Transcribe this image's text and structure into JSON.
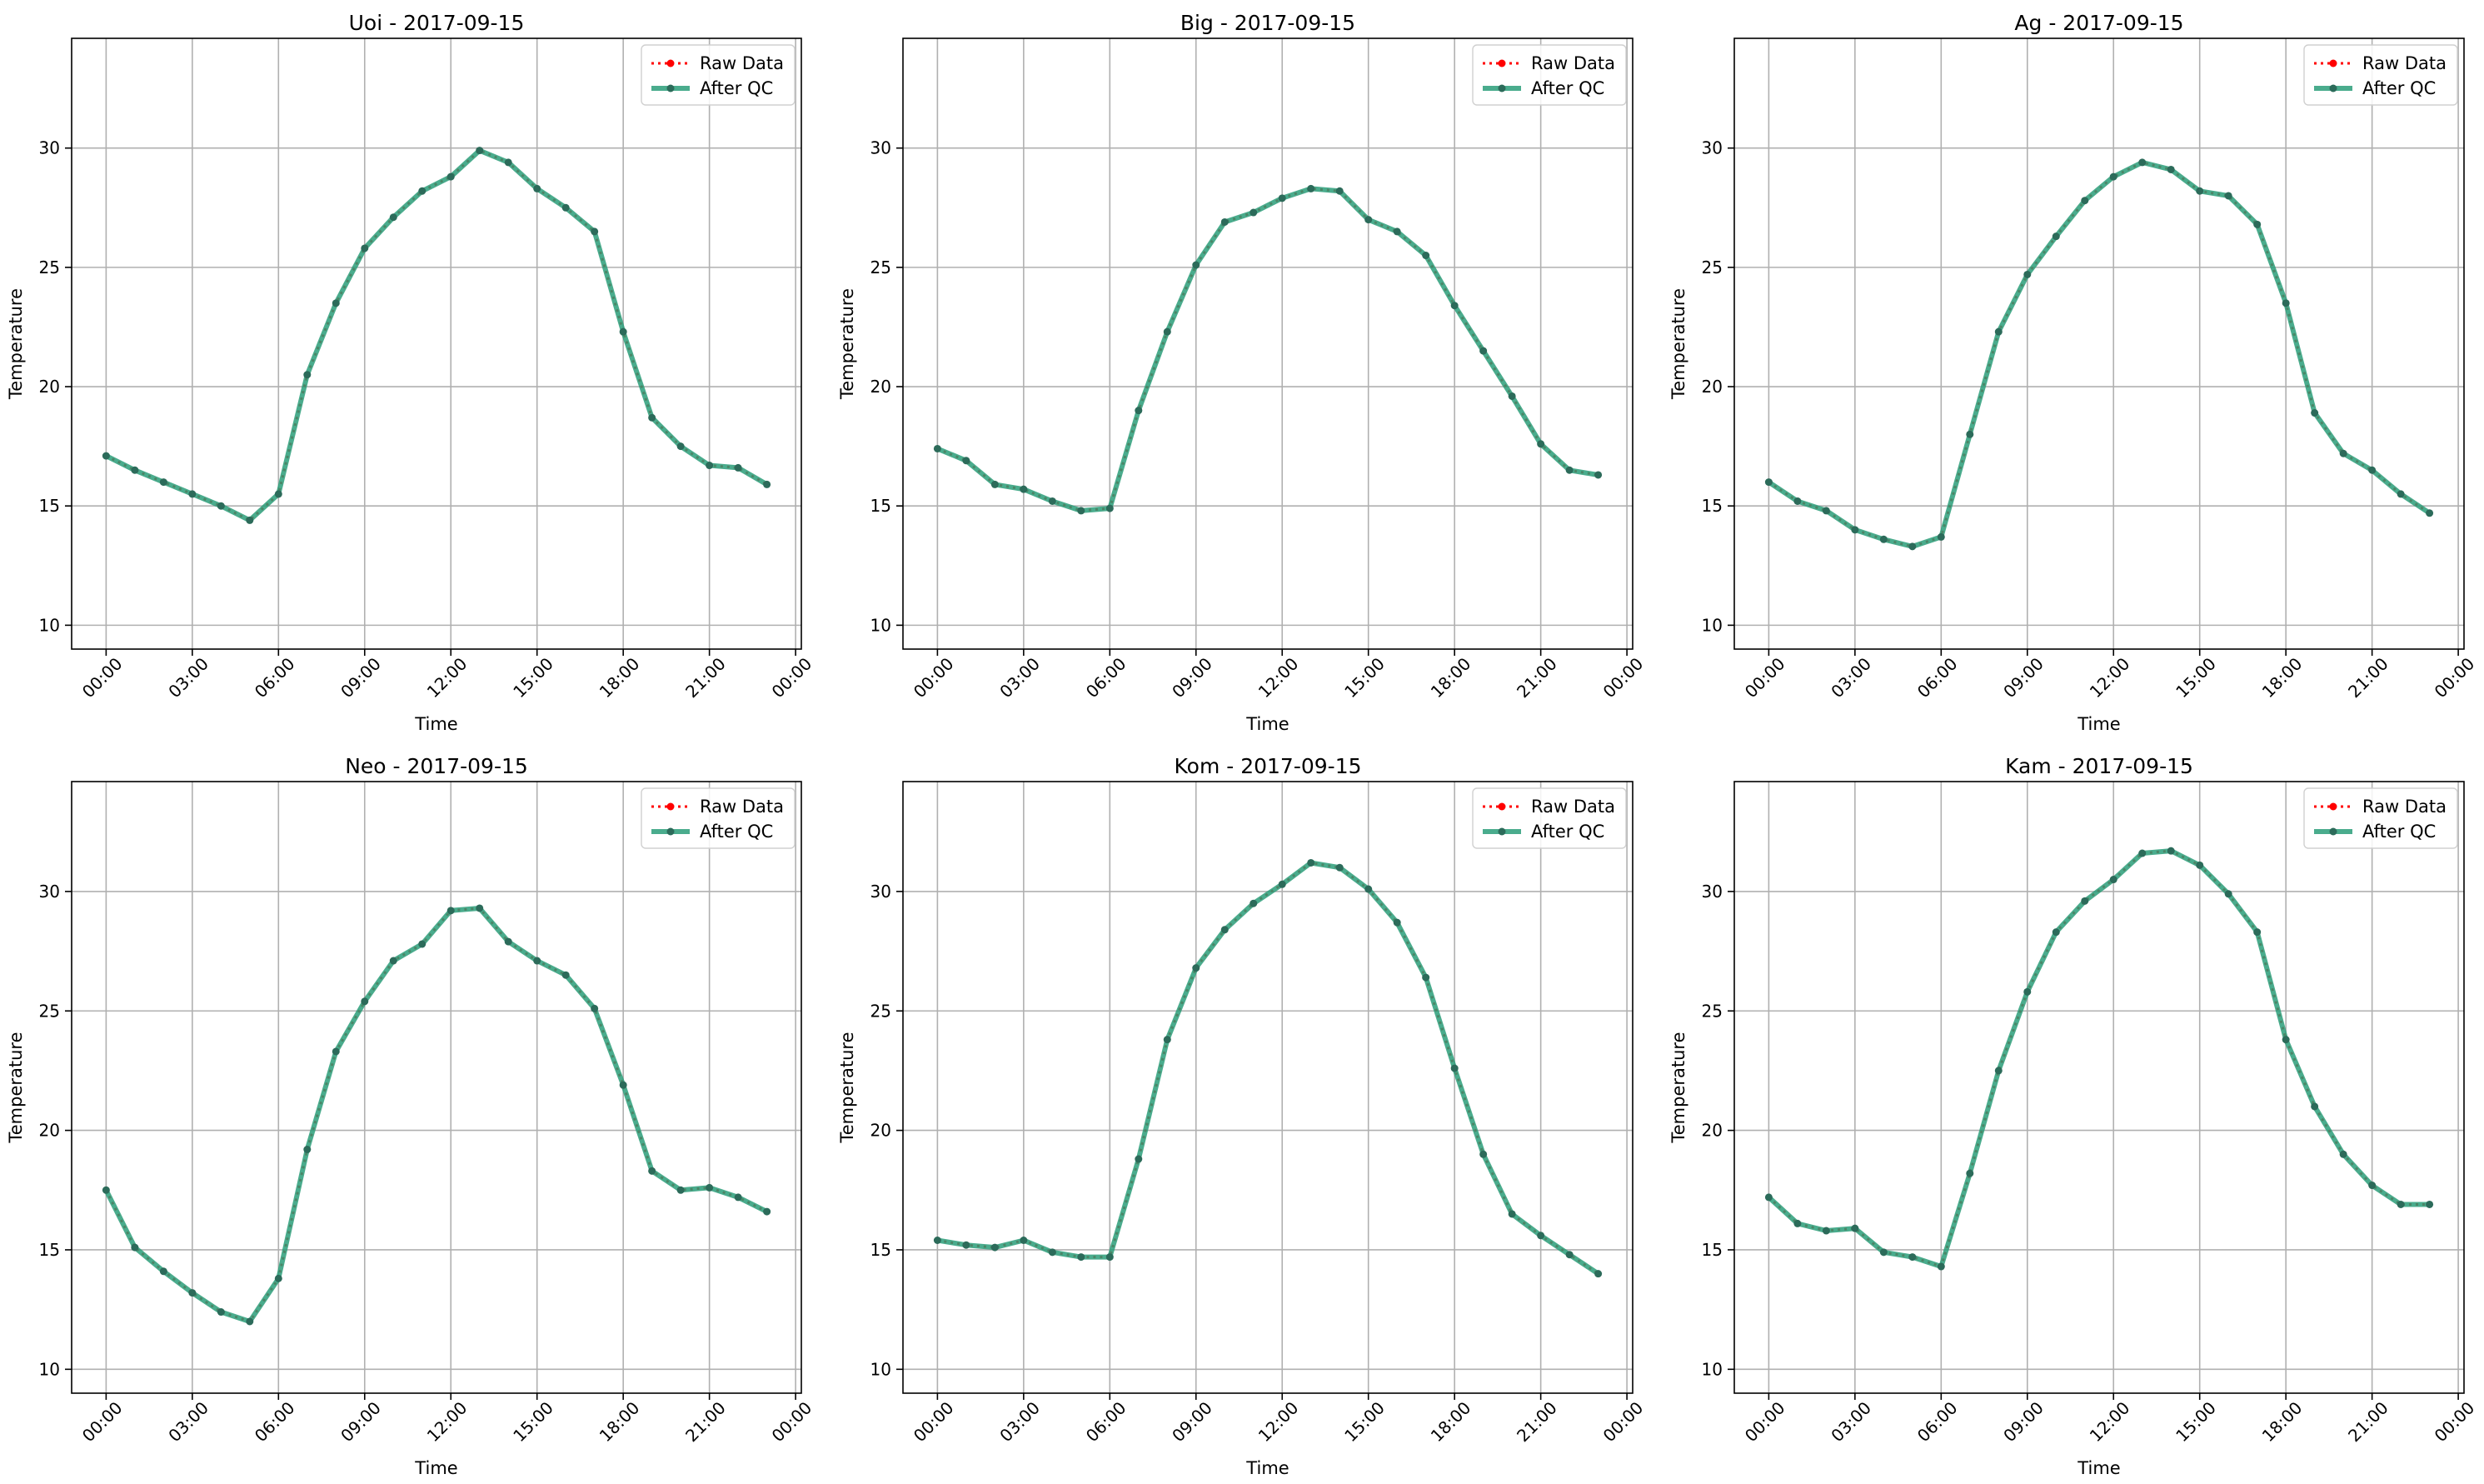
{
  "colors": {
    "raw": "#ff0000",
    "qc": "#2a9d79",
    "grid": "#b0b0b0"
  },
  "chart_data": [
    {
      "type": "line",
      "title": "Uoi - 2017-09-15",
      "xlabel": "Time",
      "ylabel": "Temperature",
      "x_ticks": [
        "00:00",
        "03:00",
        "06:00",
        "09:00",
        "12:00",
        "15:00",
        "18:00",
        "21:00",
        "00:00"
      ],
      "y_ticks": [
        10,
        15,
        20,
        25,
        30
      ],
      "ylim": [
        9,
        34.6
      ],
      "xlim_hours": [
        -1.2,
        24.2
      ],
      "grid": true,
      "legend_position": "upper right",
      "x_hours": [
        0,
        1,
        2,
        3,
        4,
        5,
        6,
        7,
        8,
        9,
        10,
        11,
        12,
        13,
        14,
        15,
        16,
        17,
        18,
        19,
        20,
        21,
        22,
        23
      ],
      "series": [
        {
          "name": "Raw Data",
          "values": [
            17.1,
            16.5,
            16.0,
            15.5,
            15.0,
            14.4,
            15.5,
            20.5,
            23.5,
            25.8,
            27.1,
            28.2,
            28.8,
            29.9,
            29.4,
            28.3,
            27.5,
            26.5,
            22.3,
            18.7,
            17.5,
            16.7,
            16.6,
            15.9
          ]
        },
        {
          "name": "After QC",
          "values": [
            17.1,
            16.5,
            16.0,
            15.5,
            15.0,
            14.4,
            15.5,
            20.5,
            23.5,
            25.8,
            27.1,
            28.2,
            28.8,
            29.9,
            29.4,
            28.3,
            27.5,
            26.5,
            22.3,
            18.7,
            17.5,
            16.7,
            16.6,
            15.9
          ]
        }
      ]
    },
    {
      "type": "line",
      "title": "Big - 2017-09-15",
      "xlabel": "Time",
      "ylabel": "Temperature",
      "x_ticks": [
        "00:00",
        "03:00",
        "06:00",
        "09:00",
        "12:00",
        "15:00",
        "18:00",
        "21:00",
        "00:00"
      ],
      "y_ticks": [
        10,
        15,
        20,
        25,
        30
      ],
      "ylim": [
        9,
        34.6
      ],
      "xlim_hours": [
        -1.2,
        24.2
      ],
      "grid": true,
      "legend_position": "upper right",
      "x_hours": [
        0,
        1,
        2,
        3,
        4,
        5,
        6,
        7,
        8,
        9,
        10,
        11,
        12,
        13,
        14,
        15,
        16,
        17,
        18,
        19,
        20,
        21,
        22,
        23
      ],
      "series": [
        {
          "name": "Raw Data",
          "values": [
            17.4,
            16.9,
            15.9,
            15.7,
            15.2,
            14.8,
            14.9,
            19.0,
            22.3,
            25.1,
            26.9,
            27.3,
            27.9,
            28.3,
            28.2,
            27.0,
            26.5,
            25.5,
            23.4,
            21.5,
            19.6,
            17.6,
            16.5,
            16.3
          ]
        },
        {
          "name": "After QC",
          "values": [
            17.4,
            16.9,
            15.9,
            15.7,
            15.2,
            14.8,
            14.9,
            19.0,
            22.3,
            25.1,
            26.9,
            27.3,
            27.9,
            28.3,
            28.2,
            27.0,
            26.5,
            25.5,
            23.4,
            21.5,
            19.6,
            17.6,
            16.5,
            16.3
          ]
        }
      ]
    },
    {
      "type": "line",
      "title": "Ag - 2017-09-15",
      "xlabel": "Time",
      "ylabel": "Temperature",
      "x_ticks": [
        "00:00",
        "03:00",
        "06:00",
        "09:00",
        "12:00",
        "15:00",
        "18:00",
        "21:00",
        "00:00"
      ],
      "y_ticks": [
        10,
        15,
        20,
        25,
        30
      ],
      "ylim": [
        9,
        34.6
      ],
      "xlim_hours": [
        -1.2,
        24.2
      ],
      "grid": true,
      "legend_position": "upper right",
      "x_hours": [
        0,
        1,
        2,
        3,
        4,
        5,
        6,
        7,
        8,
        9,
        10,
        11,
        12,
        13,
        14,
        15,
        16,
        17,
        18,
        19,
        20,
        21,
        22,
        23
      ],
      "series": [
        {
          "name": "Raw Data",
          "values": [
            16.0,
            15.2,
            14.8,
            14.0,
            13.6,
            13.3,
            13.7,
            18.0,
            22.3,
            24.7,
            26.3,
            27.8,
            28.8,
            29.4,
            29.1,
            28.2,
            28.0,
            26.8,
            23.5,
            18.9,
            17.2,
            16.5,
            15.5,
            14.7
          ]
        },
        {
          "name": "After QC",
          "values": [
            16.0,
            15.2,
            14.8,
            14.0,
            13.6,
            13.3,
            13.7,
            18.0,
            22.3,
            24.7,
            26.3,
            27.8,
            28.8,
            29.4,
            29.1,
            28.2,
            28.0,
            26.8,
            23.5,
            18.9,
            17.2,
            16.5,
            15.5,
            14.7
          ]
        }
      ]
    },
    {
      "type": "line",
      "title": "Neo - 2017-09-15",
      "xlabel": "Time",
      "ylabel": "Temperature",
      "x_ticks": [
        "00:00",
        "03:00",
        "06:00",
        "09:00",
        "12:00",
        "15:00",
        "18:00",
        "21:00",
        "00:00"
      ],
      "y_ticks": [
        10,
        15,
        20,
        25,
        30
      ],
      "ylim": [
        9,
        34.6
      ],
      "xlim_hours": [
        -1.2,
        24.2
      ],
      "grid": true,
      "legend_position": "upper right",
      "x_hours": [
        0,
        1,
        2,
        3,
        4,
        5,
        6,
        7,
        8,
        9,
        10,
        11,
        12,
        13,
        14,
        15,
        16,
        17,
        18,
        19,
        20,
        21,
        22,
        23
      ],
      "series": [
        {
          "name": "Raw Data",
          "values": [
            17.5,
            15.1,
            14.1,
            13.2,
            12.4,
            12.0,
            13.8,
            19.2,
            23.3,
            25.4,
            27.1,
            27.8,
            29.2,
            29.3,
            27.9,
            27.1,
            26.5,
            25.1,
            21.9,
            18.3,
            17.5,
            17.6,
            17.2,
            16.6
          ]
        },
        {
          "name": "After QC",
          "values": [
            17.5,
            15.1,
            14.1,
            13.2,
            12.4,
            12.0,
            13.8,
            19.2,
            23.3,
            25.4,
            27.1,
            27.8,
            29.2,
            29.3,
            27.9,
            27.1,
            26.5,
            25.1,
            21.9,
            18.3,
            17.5,
            17.6,
            17.2,
            16.6
          ]
        }
      ]
    },
    {
      "type": "line",
      "title": "Kom - 2017-09-15",
      "xlabel": "Time",
      "ylabel": "Temperature",
      "x_ticks": [
        "00:00",
        "03:00",
        "06:00",
        "09:00",
        "12:00",
        "15:00",
        "18:00",
        "21:00",
        "00:00"
      ],
      "y_ticks": [
        10,
        15,
        20,
        25,
        30
      ],
      "ylim": [
        9,
        34.6
      ],
      "xlim_hours": [
        -1.2,
        24.2
      ],
      "grid": true,
      "legend_position": "upper right",
      "x_hours": [
        0,
        1,
        2,
        3,
        4,
        5,
        6,
        7,
        8,
        9,
        10,
        11,
        12,
        13,
        14,
        15,
        16,
        17,
        18,
        19,
        20,
        21,
        22,
        23
      ],
      "series": [
        {
          "name": "Raw Data",
          "values": [
            15.4,
            15.2,
            15.1,
            15.4,
            14.9,
            14.7,
            14.7,
            18.8,
            23.8,
            26.8,
            28.4,
            29.5,
            30.3,
            31.2,
            31.0,
            30.1,
            28.7,
            26.4,
            22.6,
            19.0,
            16.5,
            15.6,
            14.8,
            14.0
          ]
        },
        {
          "name": "After QC",
          "values": [
            15.4,
            15.2,
            15.1,
            15.4,
            14.9,
            14.7,
            14.7,
            18.8,
            23.8,
            26.8,
            28.4,
            29.5,
            30.3,
            31.2,
            31.0,
            30.1,
            28.7,
            26.4,
            22.6,
            19.0,
            16.5,
            15.6,
            14.8,
            14.0
          ]
        }
      ]
    },
    {
      "type": "line",
      "title": "Kam - 2017-09-15",
      "xlabel": "Time",
      "ylabel": "Temperature",
      "x_ticks": [
        "00:00",
        "03:00",
        "06:00",
        "09:00",
        "12:00",
        "15:00",
        "18:00",
        "21:00",
        "00:00"
      ],
      "y_ticks": [
        10,
        15,
        20,
        25,
        30
      ],
      "ylim": [
        9,
        34.6
      ],
      "xlim_hours": [
        -1.2,
        24.2
      ],
      "grid": true,
      "legend_position": "upper right",
      "x_hours": [
        0,
        1,
        2,
        3,
        4,
        5,
        6,
        7,
        8,
        9,
        10,
        11,
        12,
        13,
        14,
        15,
        16,
        17,
        18,
        19,
        20,
        21,
        22,
        23
      ],
      "series": [
        {
          "name": "Raw Data",
          "values": [
            17.2,
            16.1,
            15.8,
            15.9,
            14.9,
            14.7,
            14.3,
            18.2,
            22.5,
            25.8,
            28.3,
            29.6,
            30.5,
            31.6,
            31.7,
            31.1,
            29.9,
            28.3,
            23.8,
            21.0,
            19.0,
            17.7,
            16.9,
            16.9
          ]
        },
        {
          "name": "After QC",
          "values": [
            17.2,
            16.1,
            15.8,
            15.9,
            14.9,
            14.7,
            14.3,
            18.2,
            22.5,
            25.8,
            28.3,
            29.6,
            30.5,
            31.6,
            31.7,
            31.1,
            29.9,
            28.3,
            23.8,
            21.0,
            19.0,
            17.7,
            16.9,
            16.9
          ]
        }
      ]
    }
  ]
}
